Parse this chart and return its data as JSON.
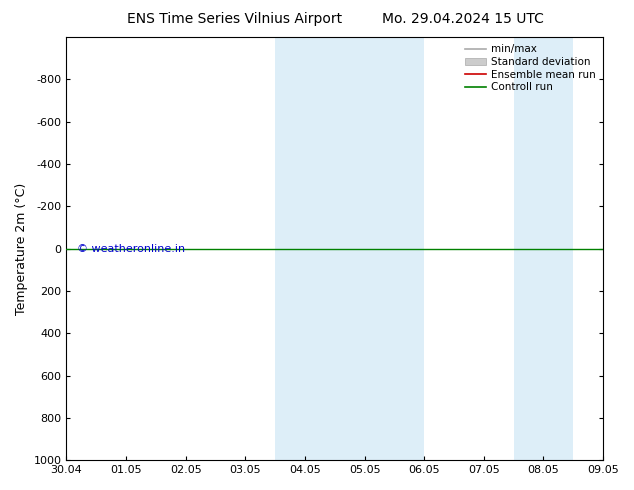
{
  "title_left": "ENS Time Series Vilnius Airport",
  "title_right": "Mo. 29.04.2024 15 UTC",
  "ylabel": "Temperature 2m (°C)",
  "ylim_top": -1000,
  "ylim_bottom": 1000,
  "yticks": [
    -800,
    -600,
    -400,
    -200,
    0,
    200,
    400,
    600,
    800,
    1000
  ],
  "x_labels": [
    "30.04",
    "01.05",
    "02.05",
    "03.05",
    "04.05",
    "05.05",
    "06.05",
    "07.05",
    "08.05",
    "09.05"
  ],
  "x_values": [
    0,
    1,
    2,
    3,
    4,
    5,
    6,
    7,
    8,
    9
  ],
  "xlim": [
    0,
    9
  ],
  "shaded_bands": [
    {
      "x_start": 3.5,
      "x_end": 4.0,
      "color": "#ddeef8"
    },
    {
      "x_start": 4.0,
      "x_end": 5.0,
      "color": "#ddeef8"
    },
    {
      "x_start": 5.0,
      "x_end": 6.0,
      "color": "#ddeef8"
    },
    {
      "x_start": 7.5,
      "x_end": 8.5,
      "color": "#ddeef8"
    }
  ],
  "green_line_y": 0,
  "green_line_color": "#008000",
  "red_line_color": "#cc0000",
  "watermark_text": "© weatheronline.in",
  "watermark_color": "#0000cc",
  "legend_entries": [
    {
      "label": "min/max",
      "color": "#aaaaaa",
      "lw": 1.2,
      "type": "line"
    },
    {
      "label": "Standard deviation",
      "color": "#cccccc",
      "lw": 8,
      "type": "patch"
    },
    {
      "label": "Ensemble mean run",
      "color": "#cc0000",
      "lw": 1.2,
      "type": "line"
    },
    {
      "label": "Controll run",
      "color": "#008000",
      "lw": 1.2,
      "type": "line"
    }
  ],
  "bg_color": "#ffffff",
  "title_fontsize": 10,
  "axis_label_fontsize": 9,
  "tick_fontsize": 8,
  "legend_fontsize": 7.5
}
